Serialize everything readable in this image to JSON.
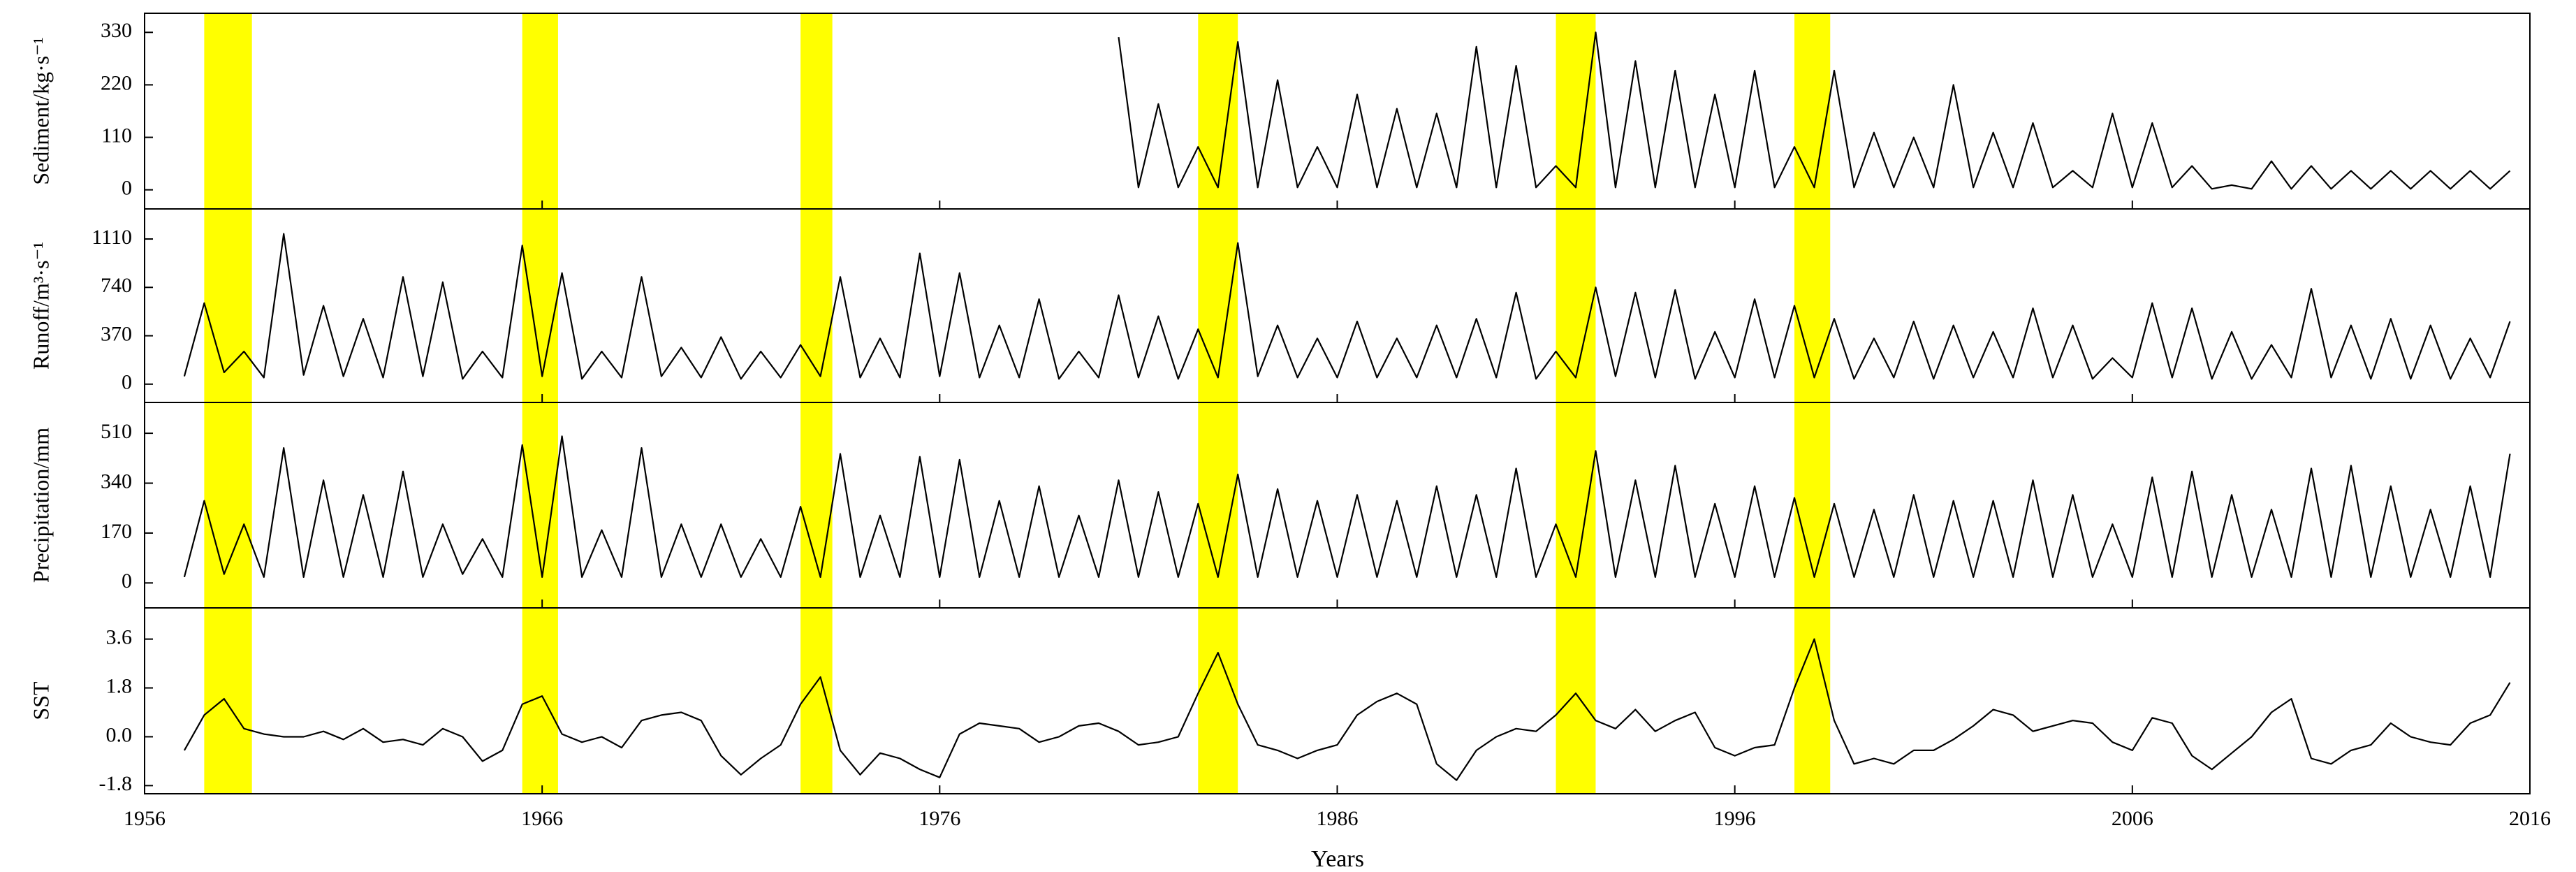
{
  "chart_data": {
    "type": "line",
    "xlabel": "Years",
    "xlim": [
      1956,
      2016
    ],
    "xticks": [
      1956,
      1966,
      1976,
      1986,
      1996,
      2006,
      2016
    ],
    "highlight_color": "#ffff00",
    "highlights": [
      [
        1957.5,
        1958.7
      ],
      [
        1965.5,
        1966.4
      ],
      [
        1972.5,
        1973.3
      ],
      [
        1982.5,
        1983.5
      ],
      [
        1991.5,
        1992.5
      ],
      [
        1997.5,
        1998.4
      ]
    ],
    "x": [
      1957,
      1957.5,
      1958,
      1958.5,
      1959,
      1959.5,
      1960,
      1960.5,
      1961,
      1961.5,
      1962,
      1962.5,
      1963,
      1963.5,
      1964,
      1964.5,
      1965,
      1965.5,
      1966,
      1966.5,
      1967,
      1967.5,
      1968,
      1968.5,
      1969,
      1969.5,
      1970,
      1970.5,
      1971,
      1971.5,
      1972,
      1972.5,
      1973,
      1973.5,
      1974,
      1974.5,
      1975,
      1975.5,
      1976,
      1976.5,
      1977,
      1977.5,
      1978,
      1978.5,
      1979,
      1979.5,
      1980,
      1980.5,
      1981,
      1981.5,
      1982,
      1982.5,
      1983,
      1983.5,
      1984,
      1984.5,
      1985,
      1985.5,
      1986,
      1986.5,
      1987,
      1987.5,
      1988,
      1988.5,
      1989,
      1989.5,
      1990,
      1990.5,
      1991,
      1991.5,
      1992,
      1992.5,
      1993,
      1993.5,
      1994,
      1994.5,
      1995,
      1995.5,
      1996,
      1996.5,
      1997,
      1997.5,
      1998,
      1998.5,
      1999,
      1999.5,
      2000,
      2000.5,
      2001,
      2001.5,
      2002,
      2002.5,
      2003,
      2003.5,
      2004,
      2004.5,
      2005,
      2005.5,
      2006,
      2006.5,
      2007,
      2007.5,
      2008,
      2008.5,
      2009,
      2009.5,
      2010,
      2010.5,
      2011,
      2011.5,
      2012,
      2012.5,
      2013,
      2013.5,
      2014,
      2014.5,
      2015,
      2015.5
    ],
    "series": [
      {
        "name": "Sediment/kg·s⁻¹",
        "color": "#000000",
        "ylim": [
          -40,
          370
        ],
        "yticks": [
          0,
          110,
          220,
          330
        ],
        "values": [
          null,
          null,
          null,
          null,
          null,
          null,
          null,
          null,
          null,
          null,
          null,
          null,
          null,
          null,
          null,
          null,
          null,
          null,
          null,
          null,
          null,
          null,
          null,
          null,
          null,
          null,
          null,
          null,
          null,
          null,
          null,
          null,
          null,
          null,
          null,
          null,
          null,
          null,
          null,
          null,
          null,
          null,
          null,
          null,
          null,
          null,
          null,
          320,
          5,
          180,
          5,
          90,
          5,
          310,
          5,
          230,
          5,
          90,
          5,
          200,
          5,
          170,
          5,
          160,
          5,
          300,
          5,
          260,
          5,
          50,
          5,
          330,
          5,
          270,
          5,
          250,
          5,
          200,
          5,
          250,
          5,
          90,
          5,
          250,
          5,
          120,
          5,
          110,
          5,
          220,
          5,
          120,
          5,
          140,
          5,
          40,
          5,
          160,
          5,
          140,
          5,
          50,
          2,
          10,
          2,
          60,
          2,
          50,
          2,
          40,
          2,
          40,
          2,
          40,
          2,
          40,
          2,
          40
        ]
      },
      {
        "name": "Runoff/m³·s⁻¹",
        "color": "#000000",
        "ylim": [
          -140,
          1340
        ],
        "yticks": [
          0,
          370,
          740,
          1110
        ],
        "values": [
          60,
          620,
          90,
          250,
          50,
          1150,
          70,
          600,
          60,
          500,
          50,
          820,
          60,
          780,
          40,
          250,
          50,
          1060,
          60,
          850,
          40,
          250,
          50,
          820,
          60,
          280,
          50,
          360,
          40,
          250,
          50,
          300,
          60,
          820,
          50,
          350,
          50,
          1000,
          60,
          850,
          50,
          450,
          50,
          650,
          40,
          250,
          50,
          680,
          50,
          520,
          40,
          420,
          50,
          1080,
          60,
          450,
          50,
          350,
          50,
          480,
          50,
          350,
          50,
          450,
          50,
          500,
          50,
          700,
          40,
          250,
          50,
          740,
          60,
          700,
          50,
          720,
          40,
          400,
          50,
          650,
          50,
          600,
          50,
          500,
          40,
          350,
          50,
          480,
          40,
          450,
          50,
          400,
          50,
          580,
          50,
          450,
          40,
          200,
          50,
          620,
          50,
          580,
          40,
          400,
          40,
          300,
          50,
          730,
          50,
          450,
          40,
          500,
          40,
          450,
          40,
          350,
          50,
          480
        ]
      },
      {
        "name": "Precipitation/mm",
        "color": "#000000",
        "ylim": [
          -85,
          615
        ],
        "yticks": [
          0,
          170,
          340,
          510
        ],
        "values": [
          20,
          280,
          30,
          200,
          20,
          460,
          20,
          350,
          20,
          300,
          20,
          380,
          20,
          200,
          30,
          150,
          20,
          470,
          20,
          500,
          20,
          180,
          20,
          460,
          20,
          200,
          20,
          200,
          20,
          150,
          20,
          260,
          20,
          440,
          20,
          230,
          20,
          430,
          20,
          420,
          20,
          280,
          20,
          330,
          20,
          230,
          20,
          350,
          20,
          310,
          20,
          270,
          20,
          370,
          20,
          320,
          20,
          280,
          20,
          300,
          20,
          280,
          20,
          330,
          20,
          300,
          20,
          390,
          20,
          200,
          20,
          450,
          20,
          350,
          20,
          400,
          20,
          270,
          20,
          330,
          20,
          290,
          20,
          270,
          20,
          250,
          20,
          300,
          20,
          280,
          20,
          280,
          20,
          350,
          20,
          300,
          20,
          200,
          20,
          360,
          20,
          380,
          20,
          300,
          20,
          250,
          20,
          390,
          20,
          400,
          20,
          330,
          20,
          250,
          20,
          330,
          20,
          440
        ]
      },
      {
        "name": "SST",
        "color": "#000000",
        "ylim": [
          -2.1,
          4.75
        ],
        "yticks": [
          -1.8,
          {
            "value": 0,
            "label": "0.0"
          },
          1.8,
          3.6
        ],
        "values": [
          -0.5,
          0.8,
          1.4,
          0.3,
          0.1,
          0.0,
          0.0,
          0.2,
          -0.1,
          0.3,
          -0.2,
          -0.1,
          -0.3,
          0.3,
          0.0,
          -0.9,
          -0.5,
          1.2,
          1.5,
          0.1,
          -0.2,
          0.0,
          -0.4,
          0.6,
          0.8,
          0.9,
          0.6,
          -0.7,
          -1.4,
          -0.8,
          -0.3,
          1.2,
          2.2,
          -0.5,
          -1.4,
          -0.6,
          -0.8,
          -1.2,
          -1.5,
          0.1,
          0.5,
          0.4,
          0.3,
          -0.2,
          0.0,
          0.4,
          0.5,
          0.2,
          -0.3,
          -0.2,
          0.0,
          1.6,
          3.1,
          1.2,
          -0.3,
          -0.5,
          -0.8,
          -0.5,
          -0.3,
          0.8,
          1.3,
          1.6,
          1.2,
          -1.0,
          -1.6,
          -0.5,
          0.0,
          0.3,
          0.2,
          0.8,
          1.6,
          0.6,
          0.3,
          1.0,
          0.2,
          0.6,
          0.9,
          -0.4,
          -0.7,
          -0.4,
          -0.3,
          1.8,
          3.6,
          0.6,
          -1.0,
          -0.8,
          -1.0,
          -0.5,
          -0.5,
          -0.1,
          0.4,
          1.0,
          0.8,
          0.2,
          0.4,
          0.6,
          0.5,
          -0.2,
          -0.5,
          0.7,
          0.5,
          -0.7,
          -1.2,
          -0.6,
          0.0,
          0.9,
          1.4,
          -0.8,
          -1.0,
          -0.5,
          -0.3,
          0.5,
          0.0,
          -0.2,
          -0.3,
          0.5,
          0.8,
          2.0
        ]
      }
    ]
  }
}
